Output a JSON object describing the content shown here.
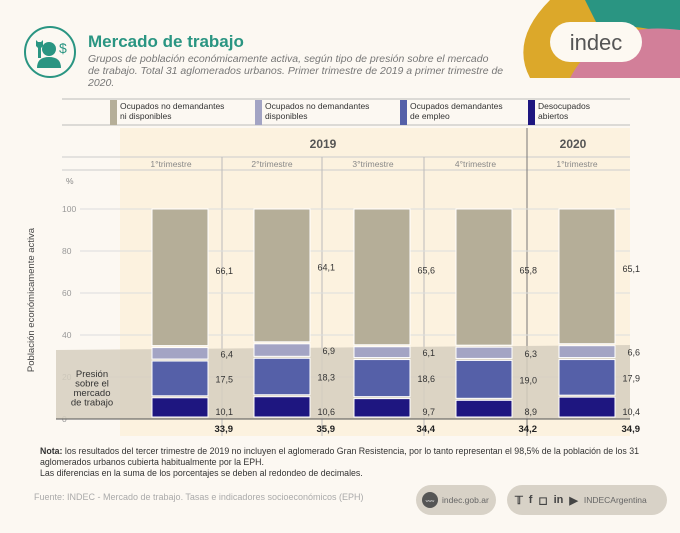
{
  "header": {
    "title": "Mercado de trabajo",
    "subtitle_line1": "Grupos de población económicamente activa, según tipo de presión sobre el mercado",
    "subtitle_line2": "de trabajo. Total 31 aglomerados urbanos. Primer trimestre de 2019 a primer trimestre de 2020.",
    "icon": "worker-wrench-dollar-icon",
    "logo_text": "indec"
  },
  "colors": {
    "brand_teal": "#2a9582",
    "brand_yellow": "#dca82a",
    "brand_pink": "#d27f99",
    "no_dem_ni_disp": "#b5ae98",
    "no_dem_disp": "#a3a4c4",
    "dem_empleo": "#5560a8",
    "desocupados": "#1e1680"
  },
  "chart_data": {
    "type": "bar",
    "stacked": true,
    "title": "Mercado de trabajo",
    "ylabel": "Población económicamente activa",
    "yunit": "%",
    "ylim": [
      0,
      100
    ],
    "yticks": [
      0,
      20,
      40,
      60,
      80,
      100
    ],
    "grid": true,
    "legend_position": "top",
    "groups": [
      {
        "label": "2019",
        "categories": [
          "1°trimestre",
          "2°trimestre",
          "3°trimestre",
          "4°trimestre"
        ]
      },
      {
        "label": "2020",
        "categories": [
          "1°trimestre"
        ]
      }
    ],
    "categories": [
      "2019 1°trimestre",
      "2019 2°trimestre",
      "2019 3°trimestre",
      "2019 4°trimestre",
      "2020 1°trimestre"
    ],
    "series": [
      {
        "name": "Desocupados abiertos",
        "values": [
          10.1,
          10.6,
          9.7,
          8.9,
          10.4
        ],
        "labels": [
          "10,1",
          "10,6",
          "9,7",
          "8,9",
          "10,4"
        ]
      },
      {
        "name": "Ocupados demandantes de empleo",
        "values": [
          17.5,
          18.3,
          18.6,
          19.0,
          17.9
        ],
        "labels": [
          "17,5",
          "18,3",
          "18,6",
          "19,0",
          "17,9"
        ]
      },
      {
        "name": "Ocupados no demandantes disponibles",
        "values": [
          6.4,
          6.9,
          6.1,
          6.3,
          6.6
        ],
        "labels": [
          "6,4",
          "6,9",
          "6,1",
          "6,3",
          "6,6"
        ]
      },
      {
        "name": "Ocupados no demandantes ni disponibles",
        "values": [
          66.1,
          64.1,
          65.6,
          65.8,
          65.1
        ],
        "labels": [
          "66,1",
          "64,1",
          "65,6",
          "65,8",
          "65,1"
        ]
      }
    ],
    "totals_label": "Presión sobre el mercado de trabajo",
    "totals": [
      "33,9",
      "35,9",
      "34,4",
      "34,2",
      "34,9"
    ],
    "legend": [
      {
        "line1": "Ocupados no demandantes",
        "line2": "ni disponibles"
      },
      {
        "line1": "Ocupados no demandantes",
        "line2": "disponibles"
      },
      {
        "line1": "Ocupados demandantes",
        "line2": "de empleo"
      },
      {
        "line1": "Desocupados",
        "line2": "abiertos"
      }
    ]
  },
  "note": {
    "label": "Nota:",
    "text": " los resultados del tercer trimestre de 2019 no incluyen el aglomerado Gran Resistencia, por lo tanto representan el 98,5% de la población de los 31 aglomerados urbanos cubierta habitualmente por la EPH.",
    "line2": "Las diferencias en la suma de los porcentajes se deben al redondeo de decimales."
  },
  "footer": {
    "source": "Fuente: INDEC - Mercado de trabajo. Tasas e indicadores socioeconómicos (EPH)",
    "website": "indec.gob.ar",
    "www_label": "www",
    "social_handle": "INDECArgentina",
    "social_icons": [
      "twitter-icon",
      "facebook-icon",
      "instagram-icon",
      "linkedin-icon",
      "youtube-icon"
    ]
  }
}
